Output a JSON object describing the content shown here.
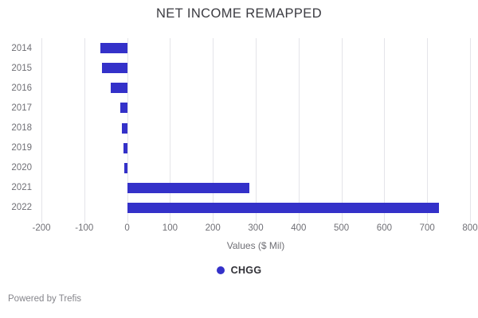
{
  "header": {
    "title": "NET INCOME REMAPPED"
  },
  "footer": {
    "text": "Powered by Trefis"
  },
  "legend": {
    "items": [
      {
        "label": "CHGG",
        "color": "#3431c9"
      }
    ]
  },
  "chart_data": {
    "type": "bar",
    "orientation": "horizontal",
    "title": "NET INCOME REMAPPED",
    "xlabel": "Values ($ Mil)",
    "ylabel": "",
    "categories": [
      "2014",
      "2015",
      "2016",
      "2017",
      "2018",
      "2019",
      "2020",
      "2021",
      "2022"
    ],
    "series": [
      {
        "name": "CHGG",
        "values": [
          -63,
          -58,
          -39,
          -17,
          -13,
          -9,
          -6,
          286,
          727
        ]
      }
    ],
    "xlim": [
      -200,
      800
    ],
    "xticks": [
      -200,
      -100,
      0,
      100,
      200,
      300,
      400,
      500,
      600,
      700,
      800
    ],
    "grid": true,
    "legend_position": "bottom",
    "bar_color": "#3431c9",
    "gridline_color": "#e4e4e9"
  }
}
